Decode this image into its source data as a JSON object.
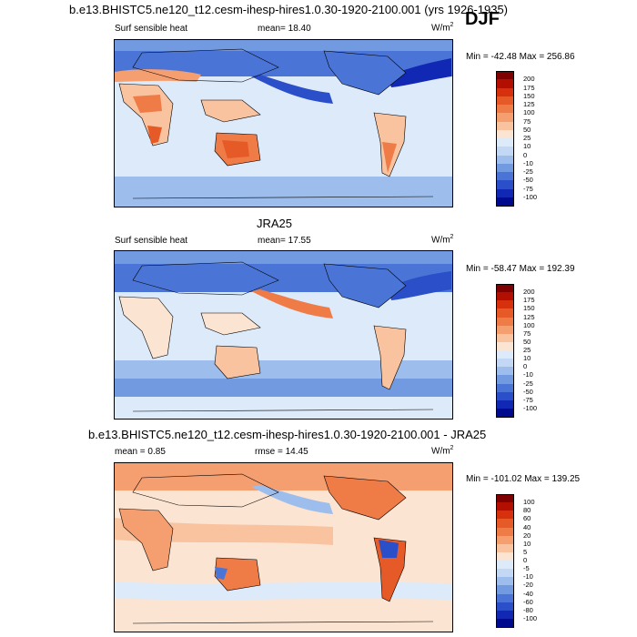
{
  "header": {
    "title": "b.e13.BHISTC5.ne120_t12.cesm-ihesp-hires1.0.30-1920-2100.001 (yrs 1926-1935)",
    "season": "DJF"
  },
  "panels": [
    {
      "variable": "Surf sensible heat",
      "stat_text": "mean=  18.40",
      "units": "W/m",
      "units_sup": "2",
      "minmax": "Min = -42.48 Max = 256.86"
    },
    {
      "heading": "JRA25",
      "variable": "Surf sensible heat",
      "stat_text": "mean=  17.55",
      "units": "W/m",
      "units_sup": "2",
      "minmax": "Min = -58.47 Max = 192.39"
    },
    {
      "heading": "b.e13.BHISTC5.ne120_t12.cesm-ihesp-hires1.0.30-1920-2100.001 - JRA25",
      "variable": "mean =  0.85",
      "stat_text": "rmse =  14.45",
      "units": "W/m",
      "units_sup": "2",
      "minmax": "Min = -101.02 Max = 139.25"
    }
  ],
  "chart_data": [
    {
      "type": "heatmap",
      "title": "Surf sensible heat",
      "colorbar_levels": [
        "200",
        "175",
        "150",
        "125",
        "100",
        "75",
        "50",
        "25",
        "10",
        "0",
        "-10",
        "-25",
        "-50",
        "-75",
        "-100"
      ],
      "colors": [
        "#7f0000",
        "#b30f00",
        "#d6300c",
        "#e65a28",
        "#ef7b47",
        "#f59e70",
        "#f9c3a0",
        "#fbe4d2",
        "#dceafa",
        "#c3d8f4",
        "#9dbdec",
        "#729ae0",
        "#4a74d6",
        "#2a4fc8",
        "#1028b4",
        "#000a8c"
      ]
    },
    {
      "type": "heatmap",
      "title": "JRA25",
      "colorbar_levels": [
        "200",
        "175",
        "150",
        "125",
        "100",
        "75",
        "50",
        "25",
        "10",
        "0",
        "-10",
        "-25",
        "-50",
        "-75",
        "-100"
      ],
      "colors": [
        "#7f0000",
        "#b30f00",
        "#d6300c",
        "#e65a28",
        "#ef7b47",
        "#f59e70",
        "#f9c3a0",
        "#fbe4d2",
        "#dceafa",
        "#c3d8f4",
        "#9dbdec",
        "#729ae0",
        "#4a74d6",
        "#2a4fc8",
        "#1028b4",
        "#000a8c"
      ]
    },
    {
      "type": "heatmap",
      "title": "b.e13.BHISTC5.ne120_t12.cesm-ihesp-hires1.0.30-1920-2100.001 - JRA25",
      "colorbar_levels": [
        "100",
        "80",
        "60",
        "40",
        "20",
        "10",
        "5",
        "0",
        "-5",
        "-10",
        "-20",
        "-40",
        "-60",
        "-80",
        "-100"
      ],
      "colors": [
        "#7f0000",
        "#b30f00",
        "#d6300c",
        "#e65a28",
        "#ef7b47",
        "#f59e70",
        "#f9c3a0",
        "#fbe4d2",
        "#dceafa",
        "#c3d8f4",
        "#9dbdec",
        "#729ae0",
        "#4a74d6",
        "#2a4fc8",
        "#1028b4",
        "#000a8c"
      ]
    }
  ]
}
